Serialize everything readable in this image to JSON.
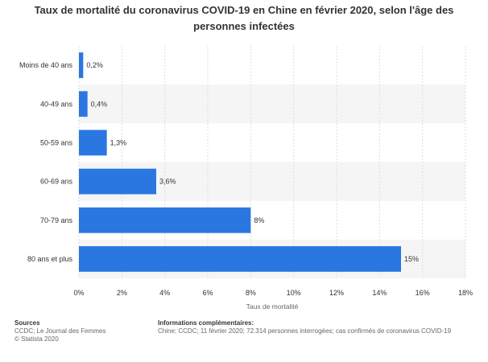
{
  "chart_data": {
    "type": "bar",
    "orientation": "horizontal",
    "title": "Taux de mortalité du coronavirus COVID-19 en Chine en février 2020, selon l'âge des personnes infectées",
    "xlabel": "Taux de mortalité",
    "ylabel": "",
    "categories": [
      "Moins de 40 ans",
      "40-49 ans",
      "50-59 ans",
      "60-69 ans",
      "70-79 ans",
      "80 ans et plus"
    ],
    "values": [
      0.2,
      0.4,
      1.3,
      3.6,
      8,
      15
    ],
    "value_labels": [
      "0,2%",
      "0,4%",
      "1,3%",
      "3,6%",
      "8%",
      "15%"
    ],
    "xlim": [
      0,
      18
    ],
    "xticks": [
      0,
      2,
      4,
      6,
      8,
      10,
      12,
      14,
      16,
      18
    ],
    "xtick_labels": [
      "0%",
      "2%",
      "4%",
      "6%",
      "8%",
      "10%",
      "12%",
      "14%",
      "16%",
      "18%"
    ],
    "grid": true,
    "bar_color": "#2a77e2",
    "band_color": "#f5f5f5"
  },
  "footer": {
    "sources_title": "Sources",
    "sources_line1": "CCDC; Le Journal des Femmes",
    "sources_line2": "© Statista 2020",
    "info_title": "Informations complémentaires:",
    "info_text": "Chine; CCDC; 11 février 2020; 72.314 personnes interrogées; cas confirmés de coronavirus COVID-19"
  }
}
